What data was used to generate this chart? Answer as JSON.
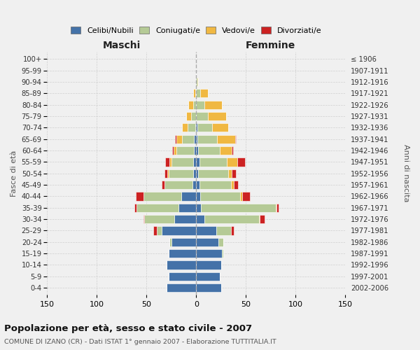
{
  "age_groups": [
    "0-4",
    "5-9",
    "10-14",
    "15-19",
    "20-24",
    "25-29",
    "30-34",
    "35-39",
    "40-44",
    "45-49",
    "50-54",
    "55-59",
    "60-64",
    "65-69",
    "70-74",
    "75-79",
    "80-84",
    "85-89",
    "90-94",
    "95-99",
    "100+"
  ],
  "birth_years": [
    "2002-2006",
    "1997-2001",
    "1992-1996",
    "1987-1991",
    "1982-1986",
    "1977-1981",
    "1972-1976",
    "1967-1971",
    "1962-1966",
    "1957-1961",
    "1952-1956",
    "1947-1951",
    "1942-1946",
    "1937-1941",
    "1932-1936",
    "1927-1931",
    "1922-1926",
    "1917-1921",
    "1912-1916",
    "1907-1911",
    "≤ 1906"
  ],
  "colors": {
    "single": "#4472a8",
    "married": "#b5ca96",
    "widow": "#f0b842",
    "divorced": "#cc2222"
  },
  "maschi_single": [
    30,
    28,
    30,
    28,
    25,
    35,
    22,
    18,
    15,
    4,
    3,
    3,
    2,
    2,
    1,
    0,
    0,
    0,
    0,
    0,
    0
  ],
  "maschi_married": [
    0,
    0,
    0,
    0,
    2,
    5,
    30,
    42,
    38,
    28,
    25,
    22,
    18,
    12,
    8,
    5,
    3,
    1,
    0,
    0,
    0
  ],
  "maschi_widow": [
    0,
    0,
    0,
    0,
    0,
    0,
    0,
    0,
    0,
    0,
    1,
    2,
    3,
    6,
    5,
    5,
    5,
    2,
    0,
    0,
    0
  ],
  "maschi_divorced": [
    0,
    0,
    0,
    0,
    0,
    3,
    1,
    2,
    8,
    3,
    3,
    4,
    1,
    1,
    0,
    0,
    0,
    0,
    0,
    0,
    0
  ],
  "femmine_single": [
    25,
    24,
    25,
    26,
    22,
    20,
    8,
    5,
    4,
    3,
    2,
    3,
    2,
    1,
    1,
    0,
    0,
    0,
    0,
    0,
    0
  ],
  "femmine_married": [
    0,
    0,
    0,
    1,
    5,
    15,
    55,
    75,
    40,
    32,
    30,
    28,
    22,
    20,
    15,
    12,
    8,
    4,
    1,
    0,
    0
  ],
  "femmine_widow": [
    0,
    0,
    0,
    0,
    0,
    0,
    1,
    1,
    2,
    3,
    4,
    10,
    12,
    18,
    16,
    18,
    18,
    8,
    1,
    0,
    0
  ],
  "femmine_divorced": [
    0,
    0,
    0,
    0,
    0,
    3,
    5,
    2,
    8,
    4,
    4,
    8,
    1,
    1,
    0,
    0,
    0,
    0,
    0,
    0,
    0
  ],
  "legend_labels": [
    "Celibi/Nubili",
    "Coniugati/e",
    "Vedovi/e",
    "Divorziati/e"
  ],
  "xlabel_maschi": "Maschi",
  "xlabel_femmine": "Femmine",
  "ylabel": "Fasce di età",
  "ylabel_right": "Anni di nascita",
  "title": "Popolazione per età, sesso e stato civile - 2007",
  "subtitle": "COMUNE DI IZANO (CR) - Dati ISTAT 1° gennaio 2007 - Elaborazione TUTTITALIA.IT",
  "xlim": 150
}
